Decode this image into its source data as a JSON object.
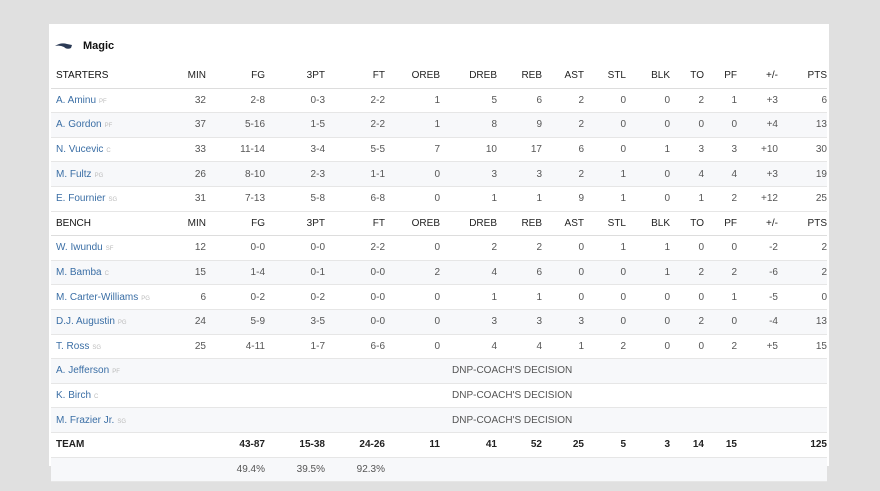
{
  "team": {
    "name": "Magic",
    "logo_icon": "magic-logo-icon"
  },
  "columns": [
    "MIN",
    "FG",
    "3PT",
    "FT",
    "OREB",
    "DREB",
    "REB",
    "AST",
    "STL",
    "BLK",
    "TO",
    "PF",
    "+/-",
    "PTS"
  ],
  "starters_label": "STARTERS",
  "bench_label": "BENCH",
  "starters": [
    {
      "name": "A. Aminu",
      "pos": "PF",
      "stats": [
        "32",
        "2-8",
        "0-3",
        "2-2",
        "1",
        "5",
        "6",
        "2",
        "0",
        "0",
        "2",
        "1",
        "+3",
        "6"
      ]
    },
    {
      "name": "A. Gordon",
      "pos": "PF",
      "stats": [
        "37",
        "5-16",
        "1-5",
        "2-2",
        "1",
        "8",
        "9",
        "2",
        "0",
        "0",
        "0",
        "0",
        "+4",
        "13"
      ]
    },
    {
      "name": "N. Vucevic",
      "pos": "C",
      "stats": [
        "33",
        "11-14",
        "3-4",
        "5-5",
        "7",
        "10",
        "17",
        "6",
        "0",
        "1",
        "3",
        "3",
        "+10",
        "30"
      ]
    },
    {
      "name": "M. Fultz",
      "pos": "PG",
      "stats": [
        "26",
        "8-10",
        "2-3",
        "1-1",
        "0",
        "3",
        "3",
        "2",
        "1",
        "0",
        "4",
        "4",
        "+3",
        "19"
      ]
    },
    {
      "name": "E. Fournier",
      "pos": "SG",
      "stats": [
        "31",
        "7-13",
        "5-8",
        "6-8",
        "0",
        "1",
        "1",
        "9",
        "1",
        "0",
        "1",
        "2",
        "+12",
        "25"
      ]
    }
  ],
  "bench": [
    {
      "name": "W. Iwundu",
      "pos": "SF",
      "stats": [
        "12",
        "0-0",
        "0-0",
        "2-2",
        "0",
        "2",
        "2",
        "0",
        "1",
        "1",
        "0",
        "0",
        "-2",
        "2"
      ]
    },
    {
      "name": "M. Bamba",
      "pos": "C",
      "stats": [
        "15",
        "1-4",
        "0-1",
        "0-0",
        "2",
        "4",
        "6",
        "0",
        "0",
        "1",
        "2",
        "2",
        "-6",
        "2"
      ]
    },
    {
      "name": "M. Carter-Williams",
      "pos": "PG",
      "stats": [
        "6",
        "0-2",
        "0-2",
        "0-0",
        "0",
        "1",
        "1",
        "0",
        "0",
        "0",
        "0",
        "1",
        "-5",
        "0"
      ]
    },
    {
      "name": "D.J. Augustin",
      "pos": "PG",
      "stats": [
        "24",
        "5-9",
        "3-5",
        "0-0",
        "0",
        "3",
        "3",
        "3",
        "0",
        "0",
        "2",
        "0",
        "-4",
        "13"
      ]
    },
    {
      "name": "T. Ross",
      "pos": "SG",
      "stats": [
        "25",
        "4-11",
        "1-7",
        "6-6",
        "0",
        "4",
        "4",
        "1",
        "2",
        "0",
        "0",
        "2",
        "+5",
        "15"
      ]
    }
  ],
  "dnp": [
    {
      "name": "A. Jefferson",
      "pos": "PF",
      "note": "DNP-COACH'S DECISION"
    },
    {
      "name": "K. Birch",
      "pos": "C",
      "note": "DNP-COACH'S DECISION"
    },
    {
      "name": "M. Frazier Jr.",
      "pos": "SG",
      "note": "DNP-COACH'S DECISION"
    }
  ],
  "totals": {
    "label": "TEAM",
    "stats": [
      "",
      "43-87",
      "15-38",
      "24-26",
      "11",
      "41",
      "52",
      "25",
      "5",
      "3",
      "14",
      "15",
      "",
      "125"
    ],
    "pct": [
      "",
      "49.4%",
      "39.5%",
      "92.3%",
      "",
      "",
      "",
      "",
      "",
      "",
      "",
      "",
      "",
      ""
    ]
  }
}
